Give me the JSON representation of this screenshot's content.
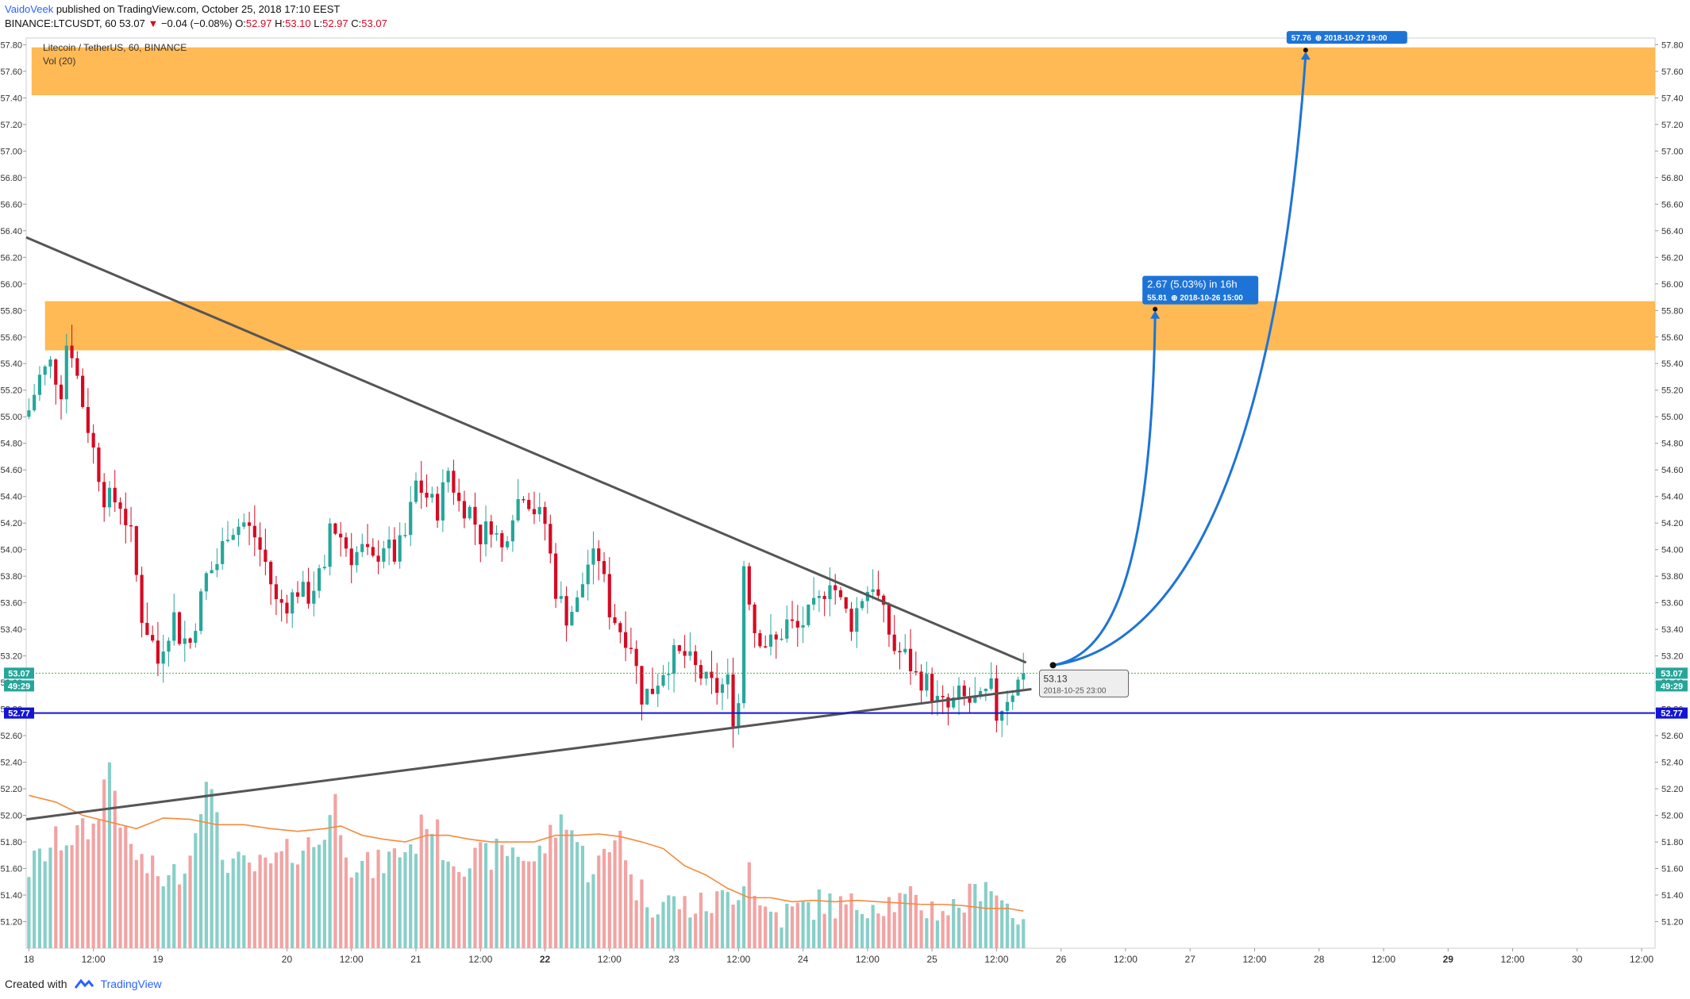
{
  "header": {
    "author": "VaidoVeek",
    "published_text": " published on TradingView.com, October 25, 2018 17:10 EEST",
    "symbol_line": "BINANCE:LTCUSDT, 60",
    "last": "53.07",
    "change_arrow": "▼",
    "change": "−0.04 (−0.08%)",
    "o_label": "O:",
    "o": "52.97",
    "h_label": "H:",
    "h": "53.10",
    "l_label": "L:",
    "l": "52.97",
    "c_label": "C:",
    "c": "53.07"
  },
  "legend": {
    "series_title": "Litecoin / TetherUS, 60, BINANCE",
    "volume_title": "Vol (20)"
  },
  "footer": {
    "created_with": "Created with",
    "brand": "TradingView"
  },
  "colors": {
    "up": "#26a69a",
    "down": "#d60a22",
    "vol_up": "#88cfc8",
    "vol_down": "#f2a3a3",
    "zone": "#ffb347",
    "support": "#1414d6",
    "trendline": "#555555",
    "projection": "#1e74d6",
    "vol_ma": "#f58b3c",
    "price_badge": "#26a69a"
  },
  "chart_data": {
    "type": "candlestick",
    "ylim": [
      51.0,
      57.85
    ],
    "y_ticks": [
      "57.80",
      "57.60",
      "57.40",
      "57.20",
      "57.00",
      "56.80",
      "56.60",
      "56.40",
      "56.20",
      "56.00",
      "55.80",
      "55.60",
      "55.40",
      "55.20",
      "55.00",
      "54.80",
      "54.60",
      "54.40",
      "54.20",
      "54.00",
      "53.80",
      "53.60",
      "53.40",
      "53.20",
      "53.00",
      "52.80",
      "52.60",
      "52.40",
      "52.20",
      "52.00",
      "51.80",
      "51.60",
      "51.40",
      "51.20"
    ],
    "x_ticks": [
      {
        "label": "18",
        "x": 0.0
      },
      {
        "label": "12:00",
        "x": 12
      },
      {
        "label": "19",
        "x": 24
      },
      {
        "label": "20",
        "x": 48
      },
      {
        "label": "12:00",
        "x": 60
      },
      {
        "label": "21",
        "x": 72
      },
      {
        "label": "12:00",
        "x": 84
      },
      {
        "label": "22",
        "x": 96
      },
      {
        "label": "12:00",
        "x": 108
      },
      {
        "label": "23",
        "x": 120
      },
      {
        "label": "12:00",
        "x": 132
      },
      {
        "label": "24",
        "x": 144
      },
      {
        "label": "12:00",
        "x": 156
      },
      {
        "label": "25",
        "x": 168
      },
      {
        "label": "12:00",
        "x": 180
      },
      {
        "label": "26",
        "x": 192
      },
      {
        "label": "12:00",
        "x": 204
      },
      {
        "label": "27",
        "x": 216
      },
      {
        "label": "12:00",
        "x": 228
      },
      {
        "label": "28",
        "x": 240
      },
      {
        "label": "12:00",
        "x": 252
      },
      {
        "label": "29",
        "x": 264
      },
      {
        "label": "12:00",
        "x": 276
      },
      {
        "label": "30",
        "x": 288
      },
      {
        "label": "12:00",
        "x": 300
      }
    ],
    "bold_x_labels": [
      "22",
      "29"
    ],
    "x_range": [
      -0.5,
      302.5
    ],
    "price_anchors": [
      [
        0,
        55.05
      ],
      [
        2,
        55.3
      ],
      [
        4,
        55.4
      ],
      [
        6,
        55.2
      ],
      [
        7,
        55.55
      ],
      [
        8,
        55.5
      ],
      [
        10,
        55.1
      ],
      [
        12,
        54.75
      ],
      [
        14,
        54.4
      ],
      [
        17,
        54.35
      ],
      [
        19,
        54.1
      ],
      [
        20,
        53.8
      ],
      [
        21,
        53.5
      ],
      [
        23,
        53.3
      ],
      [
        24,
        53.15
      ],
      [
        25,
        53.3
      ],
      [
        27,
        53.5
      ],
      [
        28,
        53.35
      ],
      [
        30,
        53.3
      ],
      [
        33,
        53.8
      ],
      [
        35,
        53.9
      ],
      [
        37,
        54.15
      ],
      [
        40,
        54.2
      ],
      [
        42,
        54.1
      ],
      [
        44,
        53.9
      ],
      [
        46,
        53.6
      ],
      [
        48,
        53.6
      ],
      [
        50,
        53.7
      ],
      [
        52,
        53.65
      ],
      [
        54,
        53.8
      ],
      [
        55,
        53.8
      ],
      [
        56,
        54.2
      ],
      [
        58,
        54.1
      ],
      [
        60,
        53.95
      ],
      [
        62,
        54.0
      ],
      [
        64,
        53.9
      ],
      [
        66,
        54.05
      ],
      [
        68,
        53.95
      ],
      [
        70,
        54.1
      ],
      [
        72,
        54.5
      ],
      [
        74,
        54.4
      ],
      [
        76,
        54.3
      ],
      [
        78,
        54.6
      ],
      [
        80,
        54.35
      ],
      [
        82,
        54.3
      ],
      [
        84,
        54.1
      ],
      [
        86,
        54.2
      ],
      [
        88,
        54.0
      ],
      [
        90,
        54.3
      ],
      [
        92,
        54.45
      ],
      [
        94,
        54.3
      ],
      [
        96,
        54.2
      ],
      [
        98,
        53.7
      ],
      [
        100,
        53.5
      ],
      [
        102,
        53.6
      ],
      [
        104,
        53.9
      ],
      [
        106,
        53.95
      ],
      [
        108,
        53.55
      ],
      [
        110,
        53.4
      ],
      [
        112,
        53.3
      ],
      [
        114,
        52.9
      ],
      [
        116,
        52.95
      ],
      [
        118,
        53.1
      ],
      [
        120,
        53.2
      ],
      [
        122,
        53.2
      ],
      [
        124,
        53.1
      ],
      [
        126,
        53.0
      ],
      [
        128,
        52.95
      ],
      [
        130,
        53.0
      ],
      [
        131,
        52.75
      ],
      [
        132,
        52.85
      ],
      [
        133,
        53.9
      ],
      [
        135,
        53.4
      ],
      [
        137,
        53.3
      ],
      [
        139,
        53.3
      ],
      [
        141,
        53.45
      ],
      [
        143,
        53.4
      ],
      [
        145,
        53.5
      ],
      [
        147,
        53.6
      ],
      [
        149,
        53.8
      ],
      [
        151,
        53.6
      ],
      [
        153,
        53.45
      ],
      [
        155,
        53.65
      ],
      [
        157,
        53.75
      ],
      [
        159,
        53.5
      ],
      [
        161,
        53.25
      ],
      [
        163,
        53.2
      ],
      [
        165,
        53.05
      ],
      [
        167,
        53.0
      ],
      [
        169,
        52.85
      ],
      [
        171,
        52.8
      ],
      [
        173,
        52.9
      ],
      [
        175,
        52.85
      ],
      [
        177,
        52.85
      ],
      [
        179,
        52.95
      ],
      [
        180,
        52.75
      ],
      [
        182,
        52.9
      ],
      [
        184,
        53.0
      ],
      [
        185,
        53.07
      ]
    ],
    "volume_anchors": [
      [
        0,
        51.6
      ],
      [
        5,
        51.8
      ],
      [
        12,
        51.9
      ],
      [
        15,
        52.4
      ],
      [
        18,
        51.8
      ],
      [
        22,
        51.6
      ],
      [
        26,
        51.5
      ],
      [
        30,
        51.7
      ],
      [
        33,
        52.35
      ],
      [
        36,
        51.7
      ],
      [
        40,
        51.6
      ],
      [
        44,
        51.6
      ],
      [
        48,
        51.7
      ],
      [
        50,
        51.75
      ],
      [
        54,
        51.8
      ],
      [
        57,
        52.1
      ],
      [
        60,
        51.65
      ],
      [
        64,
        51.6
      ],
      [
        68,
        51.7
      ],
      [
        72,
        51.8
      ],
      [
        74,
        52.0
      ],
      [
        78,
        51.7
      ],
      [
        82,
        51.65
      ],
      [
        86,
        51.7
      ],
      [
        90,
        51.75
      ],
      [
        94,
        51.65
      ],
      [
        98,
        51.9
      ],
      [
        100,
        52.0
      ],
      [
        104,
        51.6
      ],
      [
        108,
        51.7
      ],
      [
        110,
        51.95
      ],
      [
        112,
        51.5
      ],
      [
        116,
        51.35
      ],
      [
        120,
        51.35
      ],
      [
        124,
        51.3
      ],
      [
        128,
        51.35
      ],
      [
        132,
        51.45
      ],
      [
        134,
        51.65
      ],
      [
        136,
        51.3
      ],
      [
        140,
        51.25
      ],
      [
        144,
        51.3
      ],
      [
        148,
        51.35
      ],
      [
        152,
        51.3
      ],
      [
        156,
        51.35
      ],
      [
        160,
        51.35
      ],
      [
        164,
        51.35
      ],
      [
        168,
        51.3
      ],
      [
        172,
        51.3
      ],
      [
        176,
        51.4
      ],
      [
        178,
        51.55
      ],
      [
        180,
        51.4
      ],
      [
        184,
        51.25
      ],
      [
        185,
        51.3
      ]
    ],
    "vol_ma": [
      [
        0,
        52.15
      ],
      [
        5,
        52.1
      ],
      [
        10,
        52.0
      ],
      [
        15,
        51.95
      ],
      [
        20,
        51.9
      ],
      [
        25,
        51.98
      ],
      [
        30,
        51.97
      ],
      [
        35,
        51.93
      ],
      [
        40,
        51.93
      ],
      [
        45,
        51.9
      ],
      [
        50,
        51.88
      ],
      [
        55,
        51.9
      ],
      [
        58,
        51.92
      ],
      [
        62,
        51.85
      ],
      [
        66,
        51.82
      ],
      [
        70,
        51.8
      ],
      [
        74,
        51.85
      ],
      [
        78,
        51.85
      ],
      [
        82,
        51.82
      ],
      [
        86,
        51.8
      ],
      [
        90,
        51.8
      ],
      [
        94,
        51.8
      ],
      [
        98,
        51.85
      ],
      [
        102,
        51.85
      ],
      [
        106,
        51.86
      ],
      [
        110,
        51.84
      ],
      [
        114,
        51.8
      ],
      [
        118,
        51.75
      ],
      [
        122,
        51.62
      ],
      [
        126,
        51.55
      ],
      [
        130,
        51.45
      ],
      [
        134,
        51.38
      ],
      [
        138,
        51.38
      ],
      [
        142,
        51.35
      ],
      [
        146,
        51.36
      ],
      [
        150,
        51.35
      ],
      [
        154,
        51.36
      ],
      [
        158,
        51.35
      ],
      [
        162,
        51.34
      ],
      [
        166,
        51.33
      ],
      [
        170,
        51.33
      ],
      [
        174,
        51.32
      ],
      [
        178,
        51.3
      ],
      [
        182,
        51.3
      ],
      [
        185,
        51.28
      ]
    ],
    "zones": [
      {
        "y_top": 57.78,
        "y_bottom": 57.42,
        "x_start": 0.5
      },
      {
        "y_top": 55.87,
        "y_bottom": 55.5,
        "x_start": 3.0
      }
    ],
    "support": {
      "y": 52.77
    },
    "trendlines": [
      {
        "x1": -0.5,
        "y1": 56.35,
        "x2": 185.5,
        "y2": 53.15
      },
      {
        "x1": -0.5,
        "y1": 51.97,
        "x2": 186.5,
        "y2": 52.95
      }
    ],
    "current_price_line": {
      "y": 53.07
    },
    "anchor_point": {
      "x": 190.5,
      "y": 53.13
    },
    "projections": [
      {
        "x": 209.5,
        "y": 55.81
      },
      {
        "x": 237.5,
        "y": 57.76
      }
    ],
    "labels": {
      "last_badge": "53.07",
      "countdown": "49:29",
      "support_badge": "52.77",
      "anchor_price": "53.13",
      "anchor_date": "2018-10-25 23:00",
      "proj1_main": "2.67 (5.03%) in 16h",
      "proj1_price": "55.81",
      "proj1_date": "⊕ 2018-10-26  15:00",
      "proj2_price": "57.76",
      "proj2_date": "⊕ 2018-10-27  19:00"
    }
  }
}
